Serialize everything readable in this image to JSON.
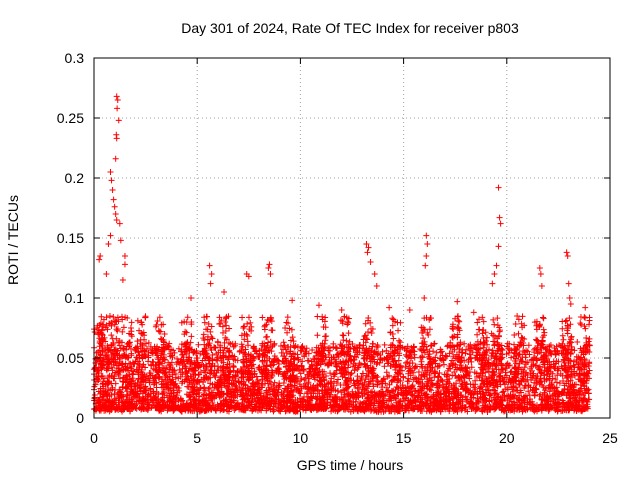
{
  "chart_data": {
    "type": "scatter",
    "title": "Day 301 of 2024, Rate Of TEC Index for receiver p803",
    "xlabel": "GPS time / hours",
    "ylabel": "ROTI / TECUs",
    "xlim": [
      0,
      25
    ],
    "ylim": [
      0,
      0.3
    ],
    "x_ticks": [
      0,
      5,
      10,
      15,
      20,
      25
    ],
    "x_tick_labels": [
      "0",
      "5",
      "10",
      "15",
      "20",
      "25"
    ],
    "y_ticks": [
      0,
      0.05,
      0.1,
      0.15,
      0.2,
      0.25,
      0.3
    ],
    "y_tick_labels": [
      "0",
      "0.05",
      "0.1",
      "0.15",
      "0.2",
      "0.25",
      "0.3"
    ],
    "grid": true,
    "marker": "plus",
    "color": "#ff0000",
    "series": [
      {
        "name": "ROTI",
        "note": "dense background points between 0 and 24 h, mostly 0.01-0.06 TECU/s",
        "background_range": {
          "x": [
            0.0,
            24.0
          ],
          "y": [
            0.005,
            0.06
          ]
        },
        "highlights": [
          [
            1.1,
            0.268
          ],
          [
            1.15,
            0.265
          ],
          [
            1.12,
            0.258
          ],
          [
            1.2,
            0.248
          ],
          [
            1.08,
            0.236
          ],
          [
            1.1,
            0.233
          ],
          [
            1.05,
            0.216
          ],
          [
            0.8,
            0.205
          ],
          [
            0.85,
            0.198
          ],
          [
            0.9,
            0.19
          ],
          [
            0.95,
            0.182
          ],
          [
            1.0,
            0.176
          ],
          [
            1.05,
            0.17
          ],
          [
            1.1,
            0.165
          ],
          [
            1.25,
            0.162
          ],
          [
            0.8,
            0.152
          ],
          [
            1.3,
            0.148
          ],
          [
            0.7,
            0.145
          ],
          [
            0.3,
            0.135
          ],
          [
            0.25,
            0.132
          ],
          [
            1.5,
            0.135
          ],
          [
            1.5,
            0.128
          ],
          [
            0.6,
            0.12
          ],
          [
            1.4,
            0.115
          ],
          [
            5.6,
            0.127
          ],
          [
            5.7,
            0.12
          ],
          [
            5.65,
            0.112
          ],
          [
            8.5,
            0.128
          ],
          [
            8.45,
            0.125
          ],
          [
            8.55,
            0.12
          ],
          [
            7.4,
            0.12
          ],
          [
            7.5,
            0.118
          ],
          [
            13.2,
            0.145
          ],
          [
            13.3,
            0.142
          ],
          [
            13.25,
            0.138
          ],
          [
            13.4,
            0.13
          ],
          [
            13.6,
            0.12
          ],
          [
            13.7,
            0.11
          ],
          [
            16.1,
            0.152
          ],
          [
            16.15,
            0.145
          ],
          [
            16.1,
            0.135
          ],
          [
            16.05,
            0.127
          ],
          [
            16.0,
            0.1
          ],
          [
            19.6,
            0.192
          ],
          [
            19.65,
            0.167
          ],
          [
            19.7,
            0.162
          ],
          [
            19.6,
            0.143
          ],
          [
            19.5,
            0.127
          ],
          [
            19.4,
            0.12
          ],
          [
            19.3,
            0.112
          ],
          [
            21.6,
            0.125
          ],
          [
            21.65,
            0.12
          ],
          [
            21.7,
            0.11
          ],
          [
            22.9,
            0.138
          ],
          [
            22.95,
            0.135
          ],
          [
            23.0,
            0.112
          ],
          [
            23.05,
            0.1
          ],
          [
            23.1,
            0.095
          ],
          [
            17.6,
            0.097
          ],
          [
            10.9,
            0.094
          ],
          [
            4.7,
            0.1
          ],
          [
            6.3,
            0.105
          ],
          [
            9.6,
            0.098
          ],
          [
            12.0,
            0.09
          ],
          [
            14.3,
            0.092
          ],
          [
            15.3,
            0.09
          ],
          [
            18.4,
            0.088
          ],
          [
            20.5,
            0.085
          ],
          [
            23.8,
            0.092
          ]
        ]
      }
    ]
  }
}
